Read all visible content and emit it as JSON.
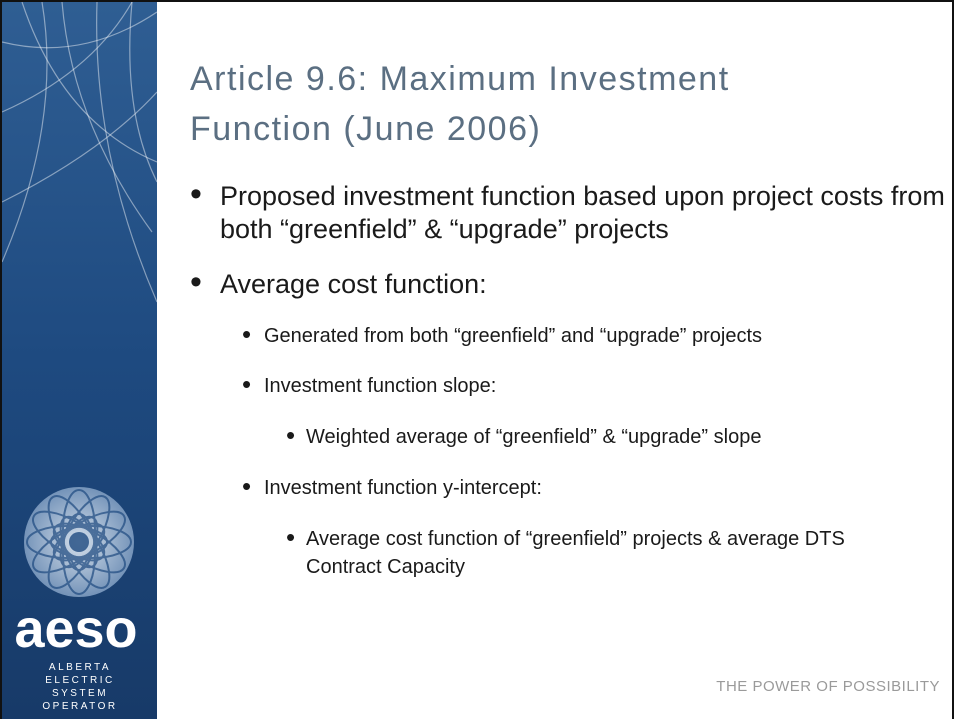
{
  "title": [
    "Article 9.6: Maximum Investment",
    "Function (June 2006)"
  ],
  "bullets": [
    {
      "level": 1,
      "text": "Proposed investment function based upon project costs from both “greenfield” & “upgrade” projects"
    },
    {
      "level": 1,
      "text": "Average cost function:"
    },
    {
      "level": 2,
      "text": "Generated from both “greenfield” and “upgrade” projects"
    },
    {
      "level": 2,
      "text": "Investment function slope:"
    },
    {
      "level": 3,
      "text": "Weighted average of “greenfield” & “upgrade” slope"
    },
    {
      "level": 2,
      "text": "Investment function y-intercept:"
    },
    {
      "level": 3,
      "text": "Average cost function of “greenfield” projects & average DTS Contract Capacity"
    }
  ],
  "logo": {
    "name": "aeso",
    "lines": [
      "ALBERTA",
      "ELECTRIC",
      "SYSTEM",
      "OPERATOR"
    ]
  },
  "footer": "THE POWER OF POSSIBILITY"
}
